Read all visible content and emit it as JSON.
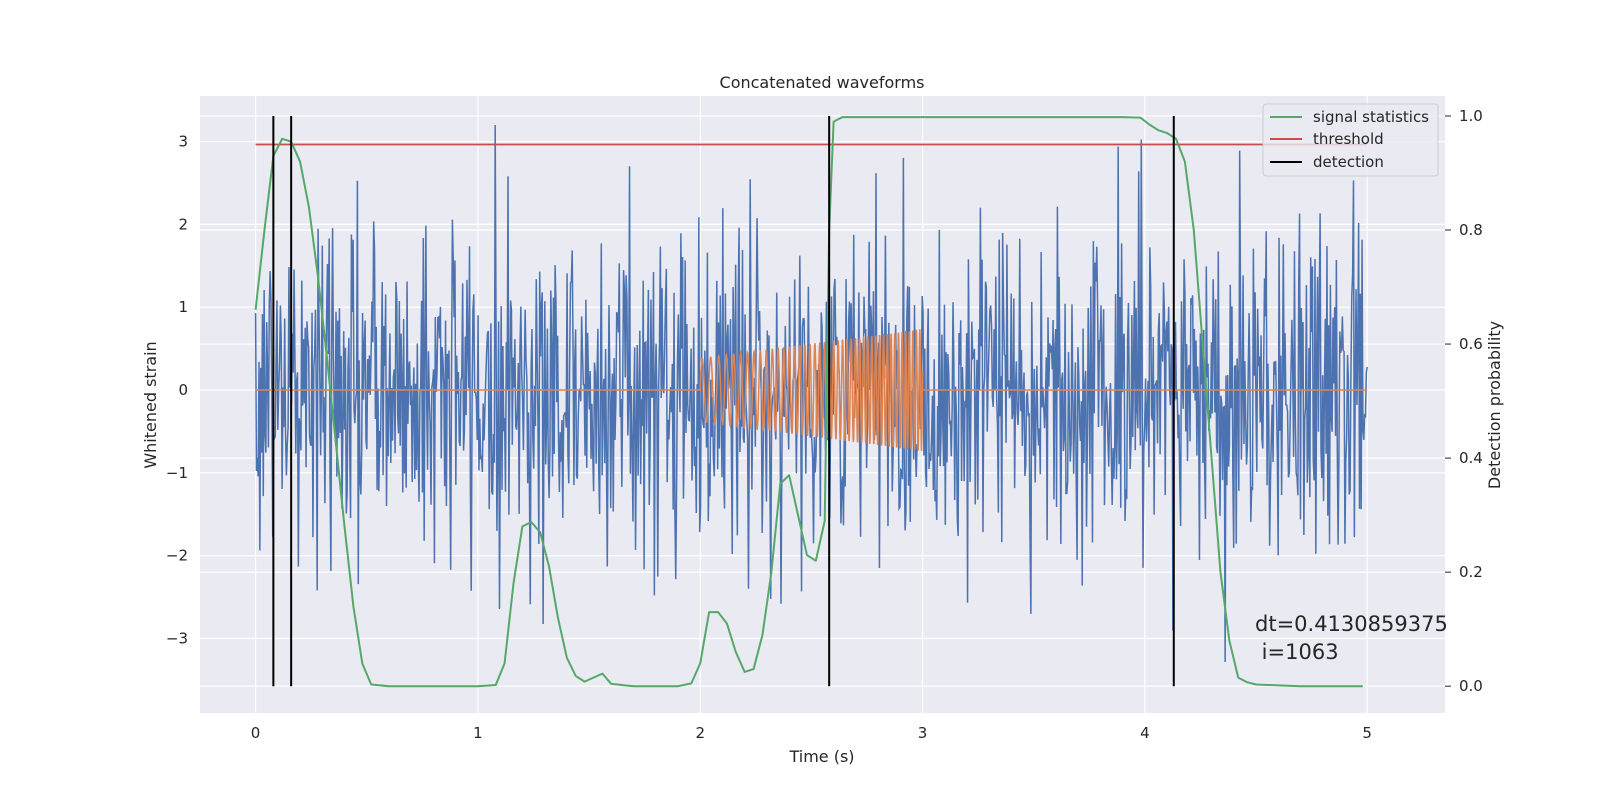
{
  "chart_data": {
    "type": "line",
    "title": "Concatenated waveforms",
    "xlabel": "Time (s)",
    "ylabel_left": "Whitened strain",
    "ylabel_right": "Detection probability",
    "xlim": [
      -0.25,
      5.35
    ],
    "ylim_left": [
      -3.9,
      3.55
    ],
    "ylim_right": [
      -0.047,
      1.035
    ],
    "xticks": [
      "0",
      "1",
      "2",
      "3",
      "4",
      "5"
    ],
    "yticks_left": [
      "3",
      "2",
      "1",
      "0",
      "−1",
      "−2",
      "−3"
    ],
    "yticks_right": [
      "0.0",
      "0.2",
      "0.4",
      "0.6",
      "0.8",
      "1.0"
    ],
    "xtick_values": [
      0,
      1,
      2,
      3,
      4,
      5
    ],
    "ytick_values_left": [
      3,
      2,
      1,
      0,
      -1,
      -2,
      -3
    ],
    "ytick_values_right": [
      0.0,
      0.2,
      0.4,
      0.6,
      0.8,
      1.0
    ],
    "grid": true,
    "legend_position": "upper right",
    "legend": [
      "signal statistics",
      "threshold",
      "detection"
    ],
    "annotation": {
      "line1": "dt=0.4130859375",
      "line2": " i=1063"
    },
    "colors": {
      "strain": "#4c72b0",
      "template": "#dd8452",
      "signal_statistics": "#55a868",
      "threshold": "#c44e52",
      "detection": "#000000",
      "background": "#eaeaf2",
      "grid": "#ffffff"
    },
    "series": [
      {
        "name": "strain",
        "axis": "left",
        "description_kind": "noise",
        "x_range": [
          0,
          5
        ],
        "envelope_max": 3.2,
        "envelope_min": -3.6,
        "typical_std": 1.0
      },
      {
        "name": "template",
        "axis": "left",
        "x_range": [
          0,
          5
        ],
        "chirp_x_range": [
          2.0,
          3.0
        ],
        "chirp_amplitude_start": 0.38,
        "chirp_amplitude_end": 0.74
      },
      {
        "name": "signal statistics",
        "axis": "right",
        "x": [
          0.0,
          0.04,
          0.08,
          0.12,
          0.16,
          0.2,
          0.24,
          0.28,
          0.32,
          0.36,
          0.4,
          0.44,
          0.48,
          0.52,
          0.6,
          0.8,
          1.0,
          1.08,
          1.12,
          1.16,
          1.2,
          1.24,
          1.28,
          1.32,
          1.36,
          1.4,
          1.44,
          1.48,
          1.52,
          1.56,
          1.6,
          1.7,
          1.9,
          1.96,
          2.0,
          2.04,
          2.08,
          2.12,
          2.16,
          2.2,
          2.24,
          2.28,
          2.32,
          2.36,
          2.4,
          2.44,
          2.48,
          2.52,
          2.56,
          2.58,
          2.6,
          2.64,
          2.7,
          3.0,
          3.5,
          3.9,
          3.98,
          4.02,
          4.06,
          4.1,
          4.14,
          4.18,
          4.22,
          4.26,
          4.3,
          4.34,
          4.38,
          4.42,
          4.46,
          4.5,
          4.7,
          4.98
        ],
        "y": [
          0.66,
          0.8,
          0.93,
          0.96,
          0.955,
          0.92,
          0.84,
          0.72,
          0.58,
          0.43,
          0.28,
          0.14,
          0.04,
          0.003,
          0.0,
          0.0,
          0.0,
          0.002,
          0.04,
          0.18,
          0.28,
          0.288,
          0.27,
          0.21,
          0.12,
          0.05,
          0.018,
          0.008,
          0.015,
          0.022,
          0.004,
          0.0,
          0.0,
          0.005,
          0.04,
          0.13,
          0.13,
          0.11,
          0.06,
          0.025,
          0.03,
          0.09,
          0.2,
          0.355,
          0.37,
          0.3,
          0.23,
          0.22,
          0.29,
          0.8,
          0.99,
          0.998,
          0.998,
          0.998,
          0.998,
          0.998,
          0.997,
          0.985,
          0.975,
          0.97,
          0.96,
          0.92,
          0.8,
          0.6,
          0.4,
          0.2,
          0.08,
          0.015,
          0.007,
          0.003,
          0.0,
          0.0
        ]
      },
      {
        "name": "threshold",
        "axis": "right",
        "value": 0.95,
        "x_range": [
          0,
          5
        ]
      }
    ],
    "detections": [
      0.08,
      0.16,
      2.58,
      4.13
    ]
  }
}
